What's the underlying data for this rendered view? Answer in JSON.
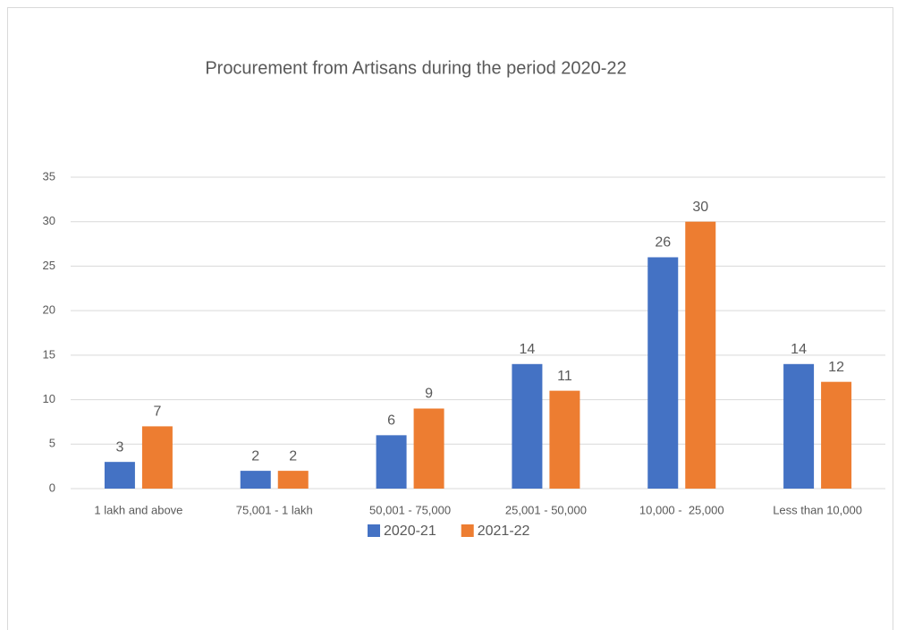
{
  "chart_data": {
    "type": "bar",
    "title": "Procurement from Artisans during the period 2020-22",
    "categories": [
      "1 lakh and above",
      "75,001 - 1 lakh",
      "50,001 - 75,000",
      "25,001 - 50,000",
      "10,000 -  25,000",
      "Less than 10,000"
    ],
    "series": [
      {
        "name": "2020-21",
        "color": "#4472c4",
        "values": [
          3,
          2,
          6,
          14,
          26,
          14
        ]
      },
      {
        "name": "2021-22",
        "color": "#ed7d31",
        "values": [
          7,
          2,
          9,
          11,
          30,
          12
        ]
      }
    ],
    "ylim": [
      0,
      35
    ],
    "yticks": [
      0,
      5,
      10,
      15,
      20,
      25,
      30,
      35
    ],
    "grid": true,
    "legend": "bottom"
  }
}
